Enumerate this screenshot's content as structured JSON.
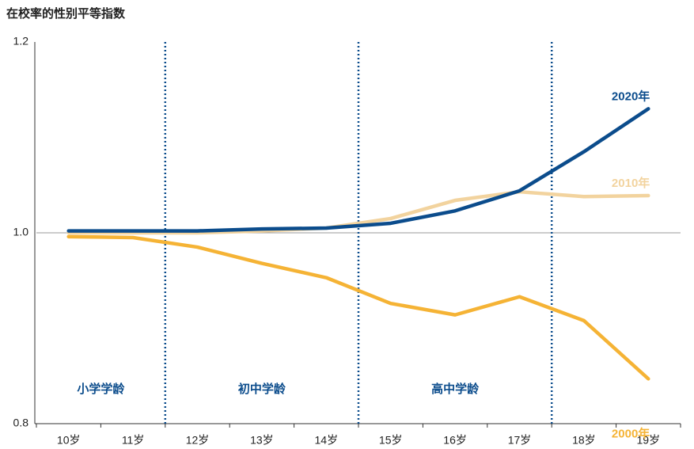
{
  "chart_data": {
    "type": "line",
    "title": "在校率的性别平等指数",
    "categories": [
      "10岁",
      "11岁",
      "12岁",
      "13岁",
      "14岁",
      "15岁",
      "16岁",
      "17岁",
      "18岁",
      "19岁"
    ],
    "series": [
      {
        "name": "2000年",
        "color": "#f5b335",
        "values": [
          0.996,
          0.995,
          0.985,
          0.968,
          0.953,
          0.926,
          0.914,
          0.933,
          0.908,
          0.847
        ]
      },
      {
        "name": "2010年",
        "color": "#f2d39e",
        "values": [
          1.0,
          1.0,
          1.0,
          1.002,
          1.005,
          1.015,
          1.034,
          1.043,
          1.038,
          1.039
        ]
      },
      {
        "name": "2020年",
        "color": "#0b4c8c",
        "values": [
          1.002,
          1.002,
          1.002,
          1.004,
          1.005,
          1.01,
          1.023,
          1.044,
          1.085,
          1.13
        ]
      }
    ],
    "stages": [
      {
        "label": "小学学龄",
        "from": "10岁",
        "to": "11岁"
      },
      {
        "label": "初中学龄",
        "from": "12岁",
        "to": "14岁"
      },
      {
        "label": "高中学龄",
        "from": "15岁",
        "to": "17岁"
      }
    ],
    "stage_color": "#0b4c8c",
    "ylim": [
      0.8,
      1.2
    ],
    "yticks": [
      {
        "value": 0.8,
        "label": "0.8"
      },
      {
        "value": 1.0,
        "label": "1.0"
      },
      {
        "value": 1.2,
        "label": "1.2"
      }
    ]
  }
}
